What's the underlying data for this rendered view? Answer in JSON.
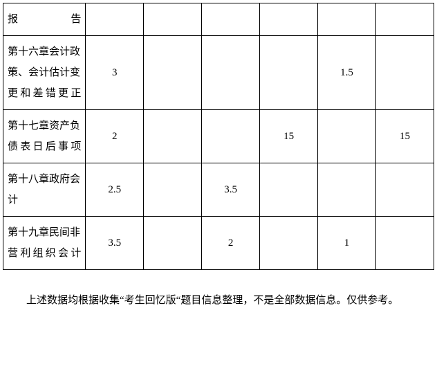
{
  "table": {
    "rows": [
      {
        "label": "报告",
        "cells": [
          "",
          "",
          "",
          "",
          "",
          ""
        ]
      },
      {
        "label": "第十六章会计政策、会计估计变更和差错更正",
        "cells": [
          "3",
          "",
          "",
          "",
          "1.5",
          ""
        ]
      },
      {
        "label": "第十七章资产负债表日后事项",
        "cells": [
          "2",
          "",
          "",
          "15",
          "",
          "15"
        ]
      },
      {
        "label": "第十八章政府会计",
        "cells": [
          "2.5",
          "",
          "3.5",
          "",
          "",
          ""
        ]
      },
      {
        "label": "第十九章民间非营利组织会计",
        "cells": [
          "3.5",
          "",
          "2",
          "",
          "1",
          ""
        ]
      }
    ]
  },
  "footnote": "上述数据均根据收集“考生回忆版“题目信息整理，不是全部数据信息。仅供参考。"
}
